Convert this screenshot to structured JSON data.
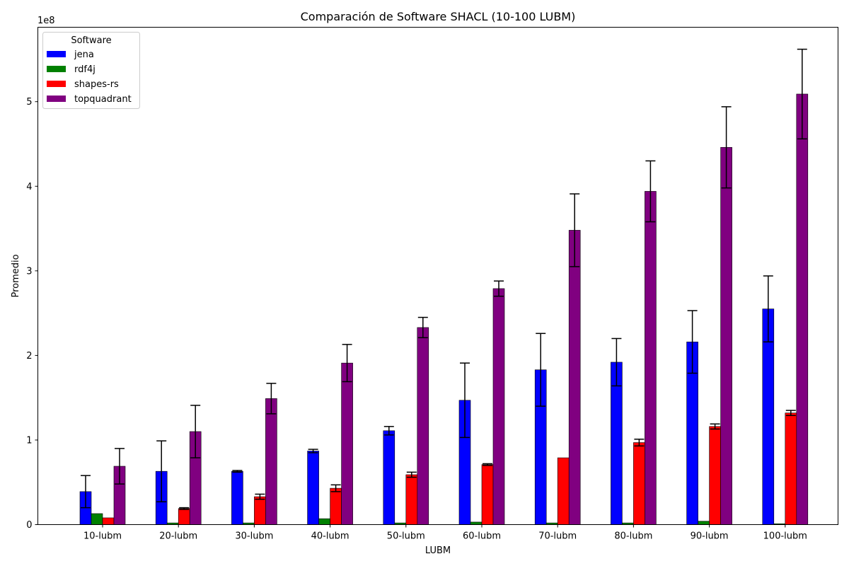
{
  "chart_data": {
    "type": "bar",
    "title": "Comparación de Software SHACL (10-100 LUBM)",
    "xlabel": "LUBM",
    "ylabel": "Promedio",
    "y_offset_label": "1e8",
    "y_scale": 100000000,
    "ylim": [
      0,
      5.88
    ],
    "yticks": [
      0,
      1,
      2,
      3,
      4,
      5
    ],
    "ytick_labels": [
      "0",
      "1",
      "2",
      "3",
      "4",
      "5"
    ],
    "grid": false,
    "legend": {
      "title": "Software",
      "placement": "top-left"
    },
    "categories": [
      "10-lubm",
      "20-lubm",
      "30-lubm",
      "40-lubm",
      "50-lubm",
      "60-lubm",
      "70-lubm",
      "80-lubm",
      "90-lubm",
      "100-lubm"
    ],
    "series": [
      {
        "name": "jena",
        "color": "#0000ff",
        "values": [
          0.39,
          0.63,
          0.63,
          0.87,
          1.11,
          1.47,
          1.83,
          1.92,
          2.16,
          2.55
        ],
        "errors": [
          0.19,
          0.36,
          0.01,
          0.02,
          0.05,
          0.44,
          0.43,
          0.28,
          0.37,
          0.39
        ]
      },
      {
        "name": "rdf4j",
        "color": "#008000",
        "values": [
          0.13,
          0.02,
          0.02,
          0.07,
          0.02,
          0.03,
          0.02,
          0.02,
          0.04,
          0.01
        ],
        "errors": [
          0.0,
          0.0,
          0.0,
          0.0,
          0.0,
          0.0,
          0.0,
          0.0,
          0.0,
          0.0
        ]
      },
      {
        "name": "shapes-rs",
        "color": "#ff0000",
        "values": [
          0.08,
          0.19,
          0.33,
          0.43,
          0.59,
          0.71,
          0.79,
          0.97,
          1.16,
          1.32
        ],
        "errors": [
          0.0,
          0.01,
          0.03,
          0.04,
          0.03,
          0.01,
          0.0,
          0.04,
          0.03,
          0.03
        ]
      },
      {
        "name": "topquadrant",
        "color": "#800080",
        "values": [
          0.69,
          1.1,
          1.49,
          1.91,
          2.33,
          2.79,
          3.48,
          3.94,
          4.46,
          5.09
        ],
        "errors": [
          0.21,
          0.31,
          0.18,
          0.22,
          0.12,
          0.09,
          0.43,
          0.36,
          0.48,
          0.53
        ]
      }
    ]
  }
}
